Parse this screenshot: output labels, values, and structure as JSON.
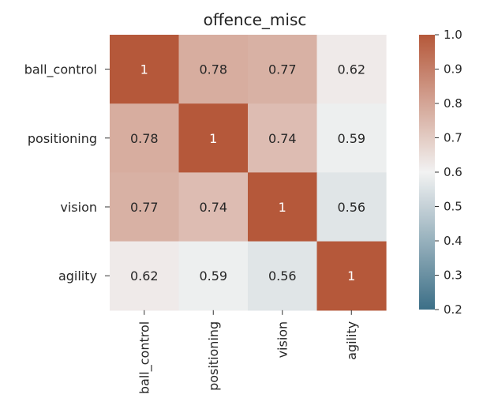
{
  "chart_data": {
    "type": "heatmap",
    "title": "offence_misc",
    "rows": [
      "ball_control",
      "positioning",
      "vision",
      "agility"
    ],
    "columns": [
      "ball_control",
      "positioning",
      "vision",
      "agility"
    ],
    "values": [
      [
        1,
        0.78,
        0.77,
        0.62
      ],
      [
        0.78,
        1,
        0.74,
        0.59
      ],
      [
        0.77,
        0.74,
        1,
        0.56
      ],
      [
        0.62,
        0.59,
        0.56,
        1
      ]
    ],
    "cell_labels": [
      [
        "1",
        "0.78",
        "0.77",
        "0.62"
      ],
      [
        "0.78",
        "1",
        "0.74",
        "0.59"
      ],
      [
        "0.77",
        "0.74",
        "1",
        "0.56"
      ],
      [
        "0.62",
        "0.59",
        "0.56",
        "1"
      ]
    ],
    "colorbar": {
      "range": [
        0.2,
        1.0
      ],
      "ticks": [
        "1.0",
        "0.9",
        "0.8",
        "0.7",
        "0.6",
        "0.5",
        "0.4",
        "0.3",
        "0.2"
      ],
      "colormap": {
        "low": "#3c6f87",
        "mid": "#f2f2f2",
        "high": "#b5583a",
        "center": 0.6
      }
    },
    "annotations": true,
    "grid": false,
    "legend": "colorbar-right"
  }
}
